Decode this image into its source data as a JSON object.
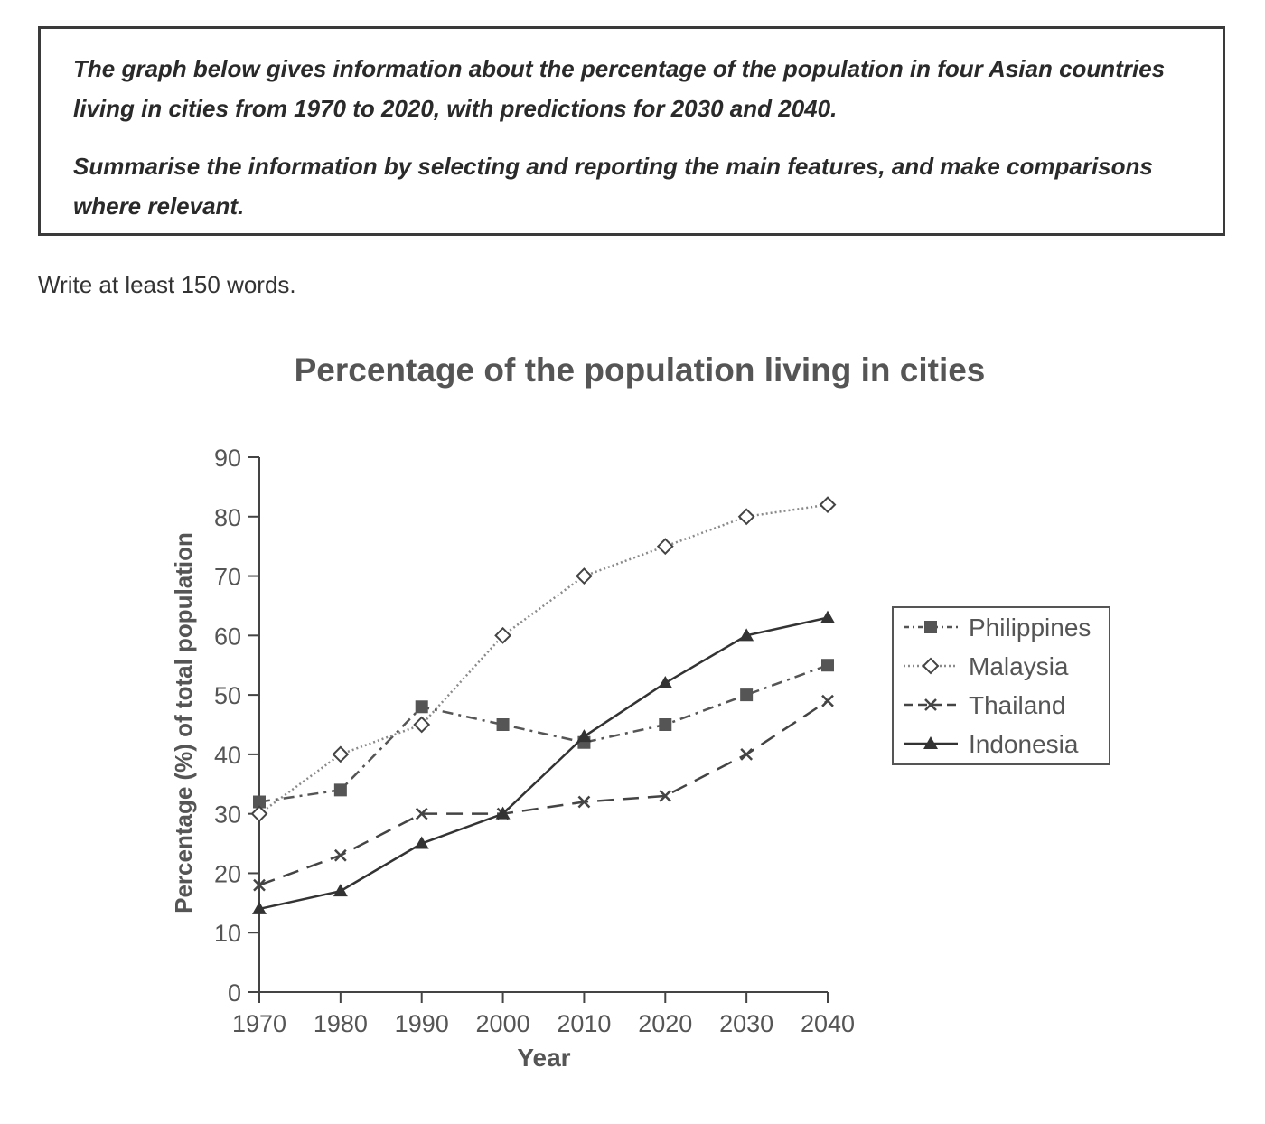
{
  "task": {
    "paragraph1": "The graph below gives information about the percentage of the population in four Asian countries living in cities from 1970 to 2020, with predictions for 2030 and 2040.",
    "paragraph2": "Summarise the information by selecting and reporting the main features, and make comparisons where relevant."
  },
  "instruction": "Write at least 150 words.",
  "chart_data": {
    "type": "line",
    "title": "Percentage of the population living in cities",
    "xlabel": "Year",
    "ylabel": "Percentage (%) of total population",
    "x": [
      "1970",
      "1980",
      "1990",
      "2000",
      "2010",
      "2020",
      "2030",
      "2040"
    ],
    "yticks": [
      "0",
      "10",
      "20",
      "30",
      "40",
      "50",
      "60",
      "70",
      "80",
      "90"
    ],
    "ylim": [
      0,
      90
    ],
    "grid": false,
    "legend_position": "right",
    "series": [
      {
        "name": "Philippines",
        "values": [
          32,
          34,
          48,
          45,
          42,
          45,
          50,
          55
        ],
        "marker": "square",
        "dash": "dash-dot",
        "color": "#555555"
      },
      {
        "name": "Malaysia",
        "values": [
          30,
          40,
          45,
          60,
          70,
          75,
          80,
          82
        ],
        "marker": "diamond",
        "dash": "dotted",
        "color": "#8a8a8a"
      },
      {
        "name": "Thailand",
        "values": [
          18,
          23,
          30,
          30,
          32,
          33,
          40,
          49
        ],
        "marker": "cross",
        "dash": "dashed",
        "color": "#444444"
      },
      {
        "name": "Indonesia",
        "values": [
          14,
          17,
          25,
          30,
          43,
          52,
          60,
          63
        ],
        "marker": "triangle",
        "dash": "solid",
        "color": "#333333"
      }
    ]
  }
}
